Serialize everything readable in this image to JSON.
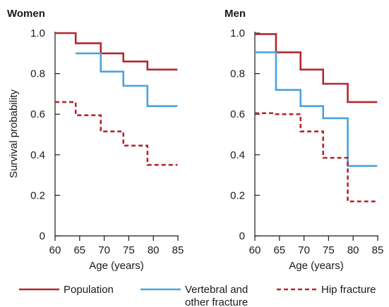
{
  "chart_data": [
    {
      "type": "line",
      "step": true,
      "title": "Women",
      "xlabel": "Age (years)",
      "ylabel": "Survival probability",
      "xlim": [
        60,
        85
      ],
      "ylim": [
        0,
        1.0
      ],
      "xticks": [
        "60",
        "65",
        "70",
        "75",
        "80",
        "85"
      ],
      "yticks": [
        "0",
        "0.2",
        "0.4",
        "0.6",
        "0.8",
        "1.0"
      ],
      "series": [
        {
          "name": "Population",
          "color": "#b5262f",
          "dash": "solid",
          "x": [
            60,
            64.2,
            69.3,
            73.9,
            78.8,
            84.9
          ],
          "y": [
            1.0,
            0.95,
            0.9,
            0.86,
            0.82,
            0.82
          ]
        },
        {
          "name": "Vertebral and other fracture",
          "color": "#4aa3dc",
          "dash": "solid",
          "x": [
            64.2,
            69.3,
            73.9,
            78.8,
            84.9
          ],
          "y": [
            0.9,
            0.81,
            0.74,
            0.64,
            0.64
          ]
        },
        {
          "name": "Hip fracture",
          "color": "#b5262f",
          "dash": "dashed",
          "x": [
            60,
            64.2,
            69.3,
            73.9,
            78.8,
            84.9
          ],
          "y": [
            0.66,
            0.595,
            0.515,
            0.445,
            0.35,
            0.35
          ]
        }
      ]
    },
    {
      "type": "line",
      "step": true,
      "title": "Men",
      "xlabel": "Age (years)",
      "ylabel": "",
      "xlim": [
        60,
        85
      ],
      "ylim": [
        0,
        1.0
      ],
      "xticks": [
        "60",
        "65",
        "70",
        "75",
        "80",
        "85"
      ],
      "yticks": [
        "0",
        "0.2",
        "0.4",
        "0.6",
        "0.8",
        "1.0"
      ],
      "series": [
        {
          "name": "Population",
          "color": "#b5262f",
          "dash": "solid",
          "x": [
            60,
            64.3,
            69.3,
            73.9,
            78.9,
            84.9
          ],
          "y": [
            0.995,
            0.905,
            0.82,
            0.75,
            0.66,
            0.66
          ]
        },
        {
          "name": "Vertebral and other fracture",
          "color": "#4aa3dc",
          "dash": "solid",
          "x": [
            60,
            64.3,
            69.3,
            73.9,
            78.9,
            84.9
          ],
          "y": [
            0.905,
            0.72,
            0.64,
            0.58,
            0.345,
            0.345
          ]
        },
        {
          "name": "Hip fracture",
          "color": "#b5262f",
          "dash": "dashed",
          "x": [
            60,
            64.3,
            69.3,
            73.9,
            78.3,
            78.9,
            84.9
          ],
          "y": [
            0.605,
            0.6,
            0.515,
            0.385,
            0.385,
            0.17,
            0.17
          ]
        }
      ]
    }
  ],
  "legend": [
    {
      "label_line1": "Population",
      "label_line2": "",
      "color": "#b5262f",
      "dash": "solid"
    },
    {
      "label_line1": "Vertebral and",
      "label_line2": "other fracture",
      "color": "#4aa3dc",
      "dash": "solid"
    },
    {
      "label_line1": "Hip fracture",
      "label_line2": "",
      "color": "#b5262f",
      "dash": "dashed"
    }
  ]
}
